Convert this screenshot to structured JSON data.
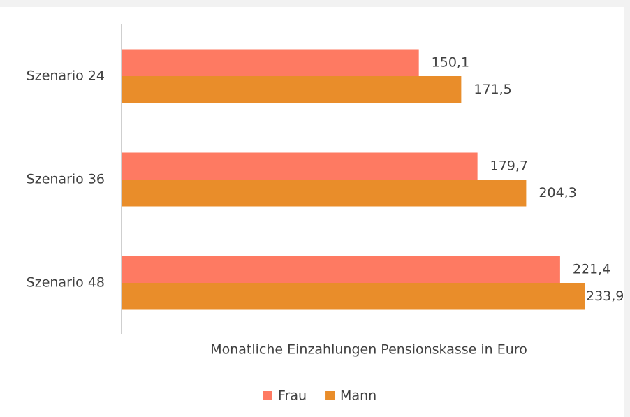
{
  "chart_data": {
    "type": "hbar",
    "categories": [
      "Szenario 24",
      "Szenario 36",
      "Szenario 48"
    ],
    "series": [
      {
        "name": "Frau",
        "color": "#fe7a62",
        "values": [
          150.1,
          179.7,
          221.4
        ],
        "value_labels": [
          "150,1",
          "179,7",
          "221,4"
        ]
      },
      {
        "name": "Mann",
        "color": "#e98d2a",
        "values": [
          171.5,
          204.3,
          233.9
        ],
        "value_labels": [
          "171,5",
          "204,3",
          "233,9"
        ]
      }
    ],
    "xlabel": "Monatliche Einzahlungen Pensionskasse in Euro",
    "xlim": [
      0,
      250
    ],
    "legend": "bottom"
  }
}
